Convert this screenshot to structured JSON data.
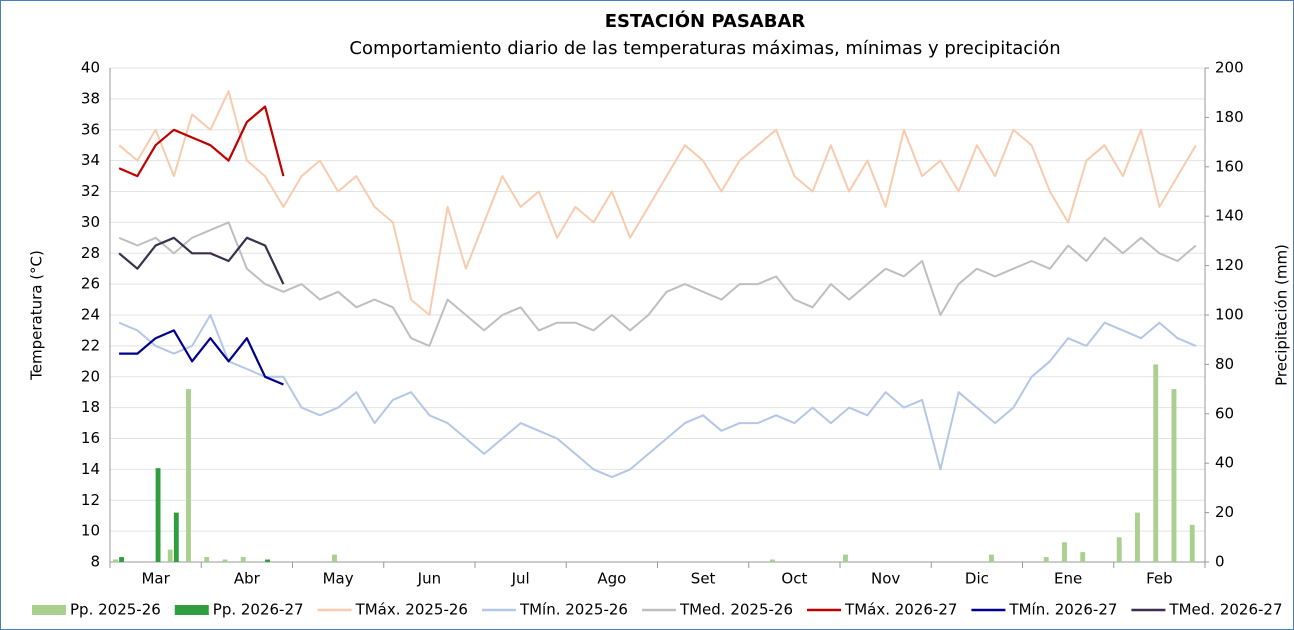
{
  "chart_data": {
    "type": "line",
    "title": "ESTACIÓN PASABAR",
    "subtitle": "Comportamiento diario de las temperaturas máximas, mínimas  y precipitación",
    "y_label": "Temperatura (°C)",
    "y2_label": "Precipitación (mm)",
    "categories": [
      null,
      null,
      "Mar",
      null,
      null,
      null,
      null,
      "Abr",
      null,
      null,
      null,
      null,
      "May",
      null,
      null,
      null,
      null,
      "Jun",
      null,
      null,
      null,
      null,
      "Jul",
      null,
      null,
      null,
      null,
      "Ago",
      null,
      null,
      null,
      null,
      "Set",
      null,
      null,
      null,
      null,
      "Oct",
      null,
      null,
      null,
      null,
      "Nov",
      null,
      null,
      null,
      null,
      "Dic",
      null,
      null,
      null,
      null,
      "Ene",
      null,
      null,
      null,
      null,
      "Feb",
      null,
      null
    ],
    "ylim": [
      8,
      40
    ],
    "yticks": [
      8,
      10,
      12,
      14,
      16,
      18,
      20,
      22,
      24,
      26,
      28,
      30,
      32,
      34,
      36,
      38,
      40
    ],
    "y2lim": [
      0,
      200
    ],
    "y2ticks": [
      0,
      20,
      40,
      60,
      80,
      100,
      120,
      140,
      160,
      180,
      200
    ],
    "grid": true,
    "series": [
      {
        "name": "Pp. 2025-26",
        "type": "bar",
        "axis": "y2",
        "color": "#a9d08e",
        "values": [
          1,
          0,
          0,
          5,
          70,
          2,
          1,
          2,
          0,
          0,
          0,
          0,
          3,
          0,
          0,
          0,
          0,
          0,
          0,
          0,
          0,
          0,
          0,
          0,
          0,
          0,
          0,
          0,
          0,
          0,
          0,
          0,
          0,
          0,
          0,
          0,
          1,
          0,
          0,
          0,
          3,
          0,
          0,
          0,
          0,
          0,
          0,
          0,
          3,
          0,
          0,
          2,
          8,
          4,
          0,
          10,
          20,
          80,
          70,
          15
        ]
      },
      {
        "name": "Pp. 2026-27",
        "type": "bar",
        "axis": "y2",
        "color": "#2e9e3e",
        "values": [
          2,
          0,
          38,
          20,
          0,
          0,
          0,
          0,
          1,
          0,
          null,
          null,
          null,
          null,
          null,
          null,
          null,
          null,
          null,
          null,
          null,
          null,
          null,
          null,
          null,
          null,
          null,
          null,
          null,
          null,
          null,
          null,
          null,
          null,
          null,
          null,
          null,
          null,
          null,
          null,
          null,
          null,
          null,
          null,
          null,
          null,
          null,
          null,
          null,
          null,
          null,
          null,
          null,
          null,
          null,
          null,
          null,
          null,
          null,
          null
        ]
      },
      {
        "name": "TMáx. 2025-26",
        "type": "line",
        "color": "#f8cbad",
        "values": [
          35,
          34,
          36,
          33,
          37,
          36,
          38.5,
          34,
          33,
          31,
          33,
          34,
          32,
          33,
          31,
          30,
          25,
          24,
          31,
          27,
          30,
          33,
          31,
          32,
          29,
          31,
          30,
          32,
          29,
          31,
          33,
          35,
          34,
          32,
          34,
          35,
          36,
          33,
          32,
          35,
          32,
          34,
          31,
          36,
          33,
          34,
          32,
          35,
          33,
          36,
          35,
          32,
          30,
          34,
          35,
          33,
          36,
          31,
          33,
          35
        ]
      },
      {
        "name": "TMín. 2025-26",
        "type": "line",
        "color": "#b4c7e7",
        "values": [
          23.5,
          23,
          22,
          21.5,
          22,
          24,
          21,
          20.5,
          20,
          20,
          18,
          17.5,
          18,
          19,
          17,
          18.5,
          19,
          17.5,
          17,
          16,
          15,
          16,
          17,
          16.5,
          16,
          15,
          14,
          13.5,
          14,
          15,
          16,
          17,
          17.5,
          16.5,
          17,
          17,
          17.5,
          17,
          18,
          17,
          18,
          17.5,
          19,
          18,
          18.5,
          14,
          19,
          18,
          17,
          18,
          20,
          21,
          22.5,
          22,
          23.5,
          23,
          22.5,
          23.5,
          22.5,
          22
        ]
      },
      {
        "name": "TMed. 2025-26",
        "type": "line",
        "color": "#bfbfbf",
        "values": [
          29,
          28.5,
          29,
          28,
          29,
          29.5,
          30,
          27,
          26,
          25.5,
          26,
          25,
          25.5,
          24.5,
          25,
          24.5,
          22.5,
          22,
          25,
          24,
          23,
          24,
          24.5,
          23,
          23.5,
          23.5,
          23,
          24,
          23,
          24,
          25.5,
          26,
          25.5,
          25,
          26,
          26,
          26.5,
          25,
          24.5,
          26,
          25,
          26,
          27,
          26.5,
          27.5,
          24,
          26,
          27,
          26.5,
          27,
          27.5,
          27,
          28.5,
          27.5,
          29,
          28,
          29,
          28,
          27.5,
          28.5
        ]
      },
      {
        "name": "TMáx. 2026-27",
        "type": "line",
        "color": "#c00000",
        "values": [
          33.5,
          33,
          35,
          36,
          35.5,
          35,
          34,
          36.5,
          37.5,
          33,
          null,
          null,
          null,
          null,
          null,
          null,
          null,
          null,
          null,
          null,
          null,
          null,
          null,
          null,
          null,
          null,
          null,
          null,
          null,
          null,
          null,
          null,
          null,
          null,
          null,
          null,
          null,
          null,
          null,
          null,
          null,
          null,
          null,
          null,
          null,
          null,
          null,
          null,
          null,
          null,
          null,
          null,
          null,
          null,
          null,
          null,
          null,
          null,
          null,
          null
        ]
      },
      {
        "name": "TMín. 2026-27",
        "type": "line",
        "color": "#00008b",
        "values": [
          21.5,
          21.5,
          22.5,
          23,
          21,
          22.5,
          21,
          22.5,
          20,
          19.5,
          null,
          null,
          null,
          null,
          null,
          null,
          null,
          null,
          null,
          null,
          null,
          null,
          null,
          null,
          null,
          null,
          null,
          null,
          null,
          null,
          null,
          null,
          null,
          null,
          null,
          null,
          null,
          null,
          null,
          null,
          null,
          null,
          null,
          null,
          null,
          null,
          null,
          null,
          null,
          null,
          null,
          null,
          null,
          null,
          null,
          null,
          null,
          null,
          null,
          null
        ]
      },
      {
        "name": "TMed. 2026-27",
        "type": "line",
        "color": "#3a2f4f",
        "values": [
          28,
          27,
          28.5,
          29,
          28,
          28,
          27.5,
          29,
          28.5,
          26,
          null,
          null,
          null,
          null,
          null,
          null,
          null,
          null,
          null,
          null,
          null,
          null,
          null,
          null,
          null,
          null,
          null,
          null,
          null,
          null,
          null,
          null,
          null,
          null,
          null,
          null,
          null,
          null,
          null,
          null,
          null,
          null,
          null,
          null,
          null,
          null,
          null,
          null,
          null,
          null,
          null,
          null,
          null,
          null,
          null,
          null,
          null,
          null,
          null,
          null
        ]
      }
    ]
  }
}
